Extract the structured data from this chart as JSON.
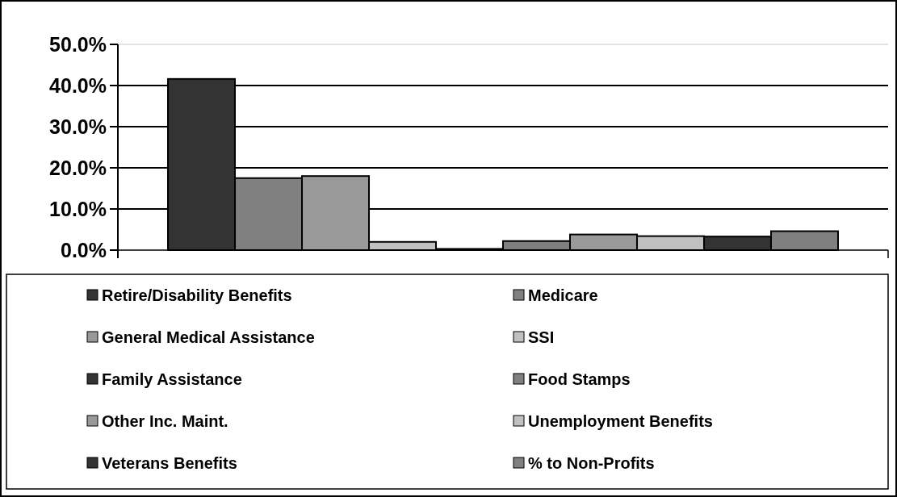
{
  "chart_data": {
    "type": "bar",
    "categories": [
      null
    ],
    "series": [
      {
        "name": "Retire/Disability Benefits",
        "color": "#333333",
        "values": [
          41.6
        ]
      },
      {
        "name": "Medicare",
        "color": "#808080",
        "values": [
          17.5
        ]
      },
      {
        "name": "General Medical Assistance",
        "color": "#999999",
        "values": [
          18.0
        ]
      },
      {
        "name": "SSI",
        "color": "#c0c0c0",
        "values": [
          2.0
        ]
      },
      {
        "name": "Family Assistance",
        "color": "#333333",
        "values": [
          0.3
        ]
      },
      {
        "name": "Food Stamps",
        "color": "#808080",
        "values": [
          2.2
        ]
      },
      {
        "name": "Other Inc. Maint.",
        "color": "#999999",
        "values": [
          3.8
        ]
      },
      {
        "name": "Unemployment Benefits",
        "color": "#c0c0c0",
        "values": [
          3.4
        ]
      },
      {
        "name": "Veterans Benefits",
        "color": "#333333",
        "values": [
          3.3
        ]
      },
      {
        "name": "% to Non-Profits",
        "color": "#808080",
        "values": [
          4.6
        ]
      }
    ],
    "ylim": [
      0,
      50
    ],
    "yticks": [
      {
        "value": 0,
        "label": "0.0%"
      },
      {
        "value": 10,
        "label": "10.0%"
      },
      {
        "value": 20,
        "label": "20.0%"
      },
      {
        "value": 30,
        "label": "30.0%"
      },
      {
        "value": 40,
        "label": "40.0%"
      },
      {
        "value": 50,
        "label": "50.0%"
      }
    ],
    "grid": "y",
    "legend": "bottom"
  }
}
